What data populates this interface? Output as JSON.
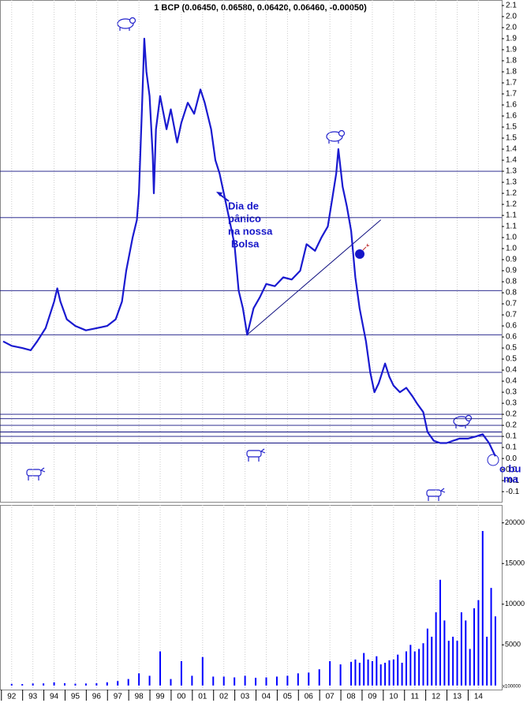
{
  "chart_data": [
    {
      "type": "line",
      "title": "1 BCP (0.06450, 0.06580, 0.06420, 0.06460, -0.00050)",
      "series": [
        {
          "color": "#1a1ad0",
          "x": [
            1991.6,
            1992,
            1992.5,
            1992.9,
            1993.2,
            1993.6,
            1994.0,
            1994.15,
            1994.3,
            1994.6,
            1995,
            1995.5,
            1996,
            1996.5,
            1996.9,
            1997.2,
            1997.4,
            1997.7,
            1997.9,
            1998.0,
            1998.15,
            1998.25,
            1998.35,
            1998.5,
            1998.65,
            1998.7,
            1998.8,
            1999.0,
            1999.3,
            1999.5,
            1999.8,
            2000.0,
            2000.3,
            2000.6,
            2000.9,
            2001.1,
            2001.4,
            2001.6,
            2001.8,
            2002.0,
            2002.2,
            2002.5,
            2002.7,
            2002.9,
            2003.1,
            2003.4,
            2003.7,
            2004.0,
            2004.4,
            2004.8,
            2005.2,
            2005.6,
            2005.9,
            2006.3,
            2006.6,
            2006.9,
            2007.1,
            2007.3,
            2007.4,
            2007.6,
            2007.8,
            2008.0,
            2008.2,
            2008.4,
            2008.7,
            2008.9,
            2009.1,
            2009.3,
            2009.6,
            2009.8,
            2010.0,
            2010.3,
            2010.6,
            2010.9,
            2011.1,
            2011.4,
            2011.6,
            2011.9,
            2012.2,
            2012.5,
            2012.8,
            2013.1,
            2013.5,
            2013.9,
            2014.2,
            2014.5,
            2014.8
          ],
          "values": [
            0.58,
            0.56,
            0.55,
            0.54,
            0.58,
            0.64,
            0.76,
            0.82,
            0.76,
            0.68,
            0.65,
            0.63,
            0.64,
            0.65,
            0.68,
            0.76,
            0.9,
            1.05,
            1.13,
            1.25,
            1.66,
            1.95,
            1.8,
            1.69,
            1.42,
            1.25,
            1.54,
            1.69,
            1.54,
            1.63,
            1.48,
            1.57,
            1.66,
            1.61,
            1.72,
            1.66,
            1.54,
            1.4,
            1.34,
            1.25,
            1.16,
            1.02,
            0.81,
            0.73,
            0.61,
            0.73,
            0.78,
            0.84,
            0.83,
            0.87,
            0.86,
            0.9,
            1.02,
            0.99,
            1.05,
            1.1,
            1.22,
            1.34,
            1.45,
            1.28,
            1.19,
            1.08,
            0.87,
            0.73,
            0.58,
            0.44,
            0.35,
            0.39,
            0.48,
            0.42,
            0.38,
            0.35,
            0.37,
            0.33,
            0.3,
            0.26,
            0.17,
            0.13,
            0.12,
            0.12,
            0.13,
            0.14,
            0.14,
            0.15,
            0.16,
            0.12,
            0.06
          ]
        }
      ],
      "levels": {
        "color": "#101080",
        "values": [
          1.35,
          1.14,
          0.81,
          0.61,
          0.44,
          0.25,
          0.23,
          0.2,
          0.17,
          0.15,
          0.12
        ]
      },
      "trendline": {
        "color": "#101080",
        "x": [
          2003.1,
          2009.4
        ],
        "values": [
          0.61,
          1.13
        ]
      },
      "annotation": [
        "Dia de",
        "pânico",
        "na nossa",
        "Bolsa"
      ],
      "cut_notes": [
        "o bu",
        "ma"
      ],
      "xlim": [
        1991.45,
        2015.1
      ],
      "ylim": [
        -0.146,
        2.125
      ],
      "yticks": [
        2.1,
        {
          "value": 2.05,
          "label": "2.0"
        },
        {
          "value": 2,
          "label": "2.0"
        },
        {
          "value": 1.95,
          "label": "1.9"
        },
        1.9,
        {
          "value": 1.85,
          "label": "1.8"
        },
        1.8,
        {
          "value": 1.75,
          "label": "1.7"
        },
        1.7,
        {
          "value": 1.65,
          "label": "1.6"
        },
        1.6,
        {
          "value": 1.55,
          "label": "1.5"
        },
        1.5,
        {
          "value": 1.45,
          "label": "1.4"
        },
        1.4,
        {
          "value": 1.35,
          "label": "1.3"
        },
        1.3,
        {
          "value": 1.25,
          "label": "1.2"
        },
        1.2,
        {
          "value": 1.15,
          "label": "1.1"
        },
        1.1,
        {
          "value": 1.05,
          "label": "1.0"
        },
        {
          "value": 1,
          "label": "1.0"
        },
        {
          "value": 0.95,
          "label": "0.9"
        },
        0.9,
        {
          "value": 0.85,
          "label": "0.8"
        },
        0.8,
        {
          "value": 0.75,
          "label": "0.7"
        },
        0.7,
        {
          "value": 0.65,
          "label": "0.6"
        },
        0.6,
        {
          "value": 0.55,
          "label": "0.5"
        },
        0.5,
        {
          "value": 0.45,
          "label": "0.4"
        },
        0.4,
        {
          "value": 0.35,
          "label": "0.3"
        },
        0.3,
        {
          "value": 0.25,
          "label": "0.2"
        },
        0.2,
        {
          "value": 0.15,
          "label": "0.1"
        },
        0.1,
        {
          "value": 0.05,
          "label": "0.0"
        },
        {
          "value": 0,
          "label": "0.0"
        },
        {
          "value": -0.05,
          "label": "-0.1"
        },
        -0.1
      ],
      "grid": true
    },
    {
      "type": "bar",
      "color": "#0000ff",
      "x": [
        1992,
        1992.5,
        1993,
        1993.5,
        1994,
        1994.5,
        1995,
        1995.5,
        1996,
        1996.5,
        1997,
        1997.5,
        1998,
        1998.5,
        1999,
        1999.5,
        2000,
        2000.5,
        2001,
        2001.5,
        2002,
        2002.5,
        2003,
        2003.5,
        2004,
        2004.5,
        2005,
        2005.5,
        2006,
        2006.5,
        2007,
        2007.5,
        2008,
        2008.2,
        2008.4,
        2008.6,
        2008.8,
        2009,
        2009.2,
        2009.4,
        2009.6,
        2009.8,
        2010,
        2010.2,
        2010.4,
        2010.6,
        2010.8,
        2011,
        2011.2,
        2011.4,
        2011.6,
        2011.8,
        2012,
        2012.2,
        2012.4,
        2012.6,
        2012.8,
        2013,
        2013.2,
        2013.4,
        2013.6,
        2013.8,
        2014,
        2014.2,
        2014.4,
        2014.6,
        2014.8
      ],
      "values": [
        200,
        180,
        250,
        260,
        400,
        280,
        220,
        250,
        280,
        400,
        550,
        800,
        1500,
        1200,
        4200,
        800,
        3000,
        1200,
        3500,
        1100,
        1100,
        1000,
        1200,
        950,
        1000,
        1100,
        1200,
        1500,
        1600,
        2000,
        3000,
        2600,
        2900,
        3200,
        2800,
        4000,
        3200,
        3000,
        3600,
        2600,
        2800,
        3100,
        3200,
        3800,
        2800,
        4200,
        5000,
        4200,
        4500,
        5200,
        7000,
        6000,
        9000,
        13000,
        8000,
        5500,
        6000,
        5500,
        9000,
        8000,
        4500,
        9500,
        10500,
        19000,
        6000,
        12000,
        8500
      ],
      "unit_label": "x100000",
      "xlim": [
        1991.45,
        2015.1
      ],
      "ylim": [
        -500,
        22200
      ],
      "yticks": [
        5000,
        10000,
        15000,
        20000
      ],
      "xticks": [
        {
          "value": 1992,
          "label": "92"
        },
        {
          "value": 1993,
          "label": "93"
        },
        {
          "value": 1994,
          "label": "94"
        },
        {
          "value": 1995,
          "label": "95"
        },
        {
          "value": 1996,
          "label": "96"
        },
        {
          "value": 1997,
          "label": "97"
        },
        {
          "value": 1998,
          "label": "98"
        },
        {
          "value": 1999,
          "label": "99"
        },
        {
          "value": 2000,
          "label": "00"
        },
        {
          "value": 2001,
          "label": "01"
        },
        {
          "value": 2002,
          "label": "02"
        },
        {
          "value": 2003,
          "label": "03"
        },
        {
          "value": 2004,
          "label": "04"
        },
        {
          "value": 2005,
          "label": "05"
        },
        {
          "value": 2006,
          "label": "06"
        },
        {
          "value": 2007,
          "label": "07"
        },
        {
          "value": 2008,
          "label": "08"
        },
        {
          "value": 2009,
          "label": "09"
        },
        {
          "value": 2010,
          "label": "10"
        },
        {
          "value": 2011,
          "label": "11"
        },
        {
          "value": 2012,
          "label": "12"
        },
        {
          "value": 2013,
          "label": "13"
        },
        {
          "value": 2014,
          "label": "14"
        }
      ]
    }
  ]
}
